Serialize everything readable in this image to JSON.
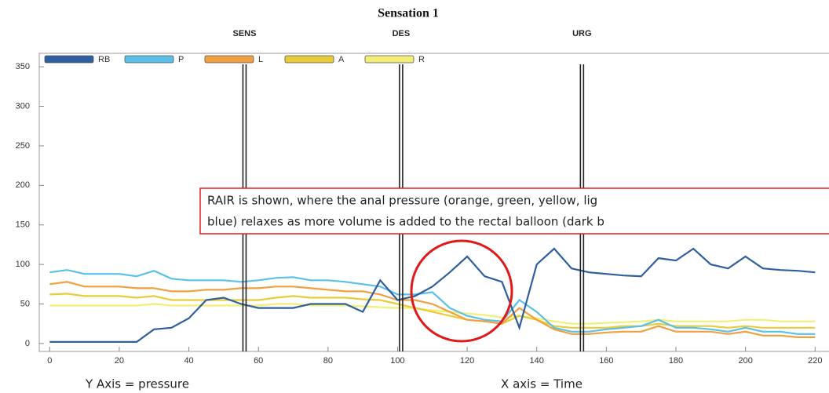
{
  "chart_data": {
    "type": "line",
    "title": "Sensation 1",
    "x": [
      0,
      5,
      10,
      15,
      20,
      25,
      30,
      35,
      40,
      45,
      50,
      55,
      60,
      65,
      70,
      75,
      80,
      85,
      90,
      95,
      100,
      105,
      110,
      115,
      120,
      125,
      130,
      135,
      140,
      145,
      150,
      155,
      160,
      165,
      170,
      175,
      180,
      185,
      190,
      195,
      200,
      205,
      210,
      215,
      220
    ],
    "series": [
      {
        "name": "RB",
        "color": "#2f5f9e",
        "values": [
          2,
          2,
          2,
          2,
          2,
          2,
          18,
          20,
          32,
          55,
          58,
          50,
          45,
          45,
          45,
          50,
          50,
          50,
          40,
          80,
          55,
          60,
          72,
          90,
          110,
          85,
          78,
          20,
          100,
          120,
          95,
          90,
          88,
          86,
          85,
          108,
          105,
          120,
          100,
          95,
          110,
          95,
          93,
          92,
          90
        ]
      },
      {
        "name": "P",
        "color": "#5bc0e8",
        "values": [
          90,
          93,
          88,
          88,
          88,
          85,
          92,
          82,
          80,
          80,
          80,
          78,
          80,
          83,
          84,
          80,
          80,
          78,
          75,
          72,
          62,
          62,
          65,
          45,
          35,
          30,
          28,
          55,
          40,
          20,
          15,
          15,
          18,
          20,
          22,
          30,
          20,
          20,
          18,
          15,
          20,
          15,
          15,
          12,
          12
        ]
      },
      {
        "name": "L",
        "color": "#f0a040",
        "values": [
          75,
          78,
          72,
          72,
          72,
          70,
          70,
          66,
          66,
          68,
          68,
          70,
          70,
          72,
          72,
          70,
          68,
          66,
          66,
          62,
          55,
          55,
          50,
          40,
          30,
          28,
          25,
          45,
          30,
          18,
          12,
          12,
          14,
          15,
          15,
          22,
          15,
          15,
          15,
          12,
          15,
          10,
          10,
          8,
          8
        ]
      },
      {
        "name": "A",
        "color": "#e8cc3a",
        "values": [
          62,
          63,
          60,
          60,
          60,
          58,
          60,
          55,
          55,
          55,
          55,
          55,
          55,
          58,
          60,
          58,
          58,
          58,
          56,
          55,
          50,
          45,
          40,
          35,
          30,
          28,
          25,
          35,
          30,
          22,
          20,
          20,
          20,
          22,
          22,
          25,
          22,
          22,
          22,
          20,
          22,
          20,
          20,
          20,
          20
        ]
      },
      {
        "name": "R",
        "color": "#f3ee78",
        "values": [
          48,
          48,
          48,
          48,
          48,
          48,
          50,
          48,
          48,
          48,
          48,
          48,
          48,
          50,
          50,
          48,
          48,
          48,
          47,
          46,
          45,
          45,
          42,
          40,
          38,
          36,
          33,
          35,
          32,
          28,
          25,
          25,
          26,
          27,
          28,
          30,
          28,
          28,
          28,
          28,
          30,
          30,
          28,
          28,
          28
        ]
      }
    ],
    "markers": [
      {
        "label": "SENS",
        "x": 56
      },
      {
        "label": "DES",
        "x": 101
      },
      {
        "label": "URG",
        "x": 153
      }
    ],
    "xlim": [
      -3,
      224
    ],
    "xticks": [
      0,
      20,
      40,
      60,
      80,
      100,
      120,
      140,
      160,
      180,
      200,
      220
    ],
    "ylim": [
      -10,
      367
    ],
    "yticks": [
      0,
      50,
      100,
      150,
      200,
      250,
      300,
      350
    ],
    "grid": false,
    "annotation": [
      "RAIR is shown, where the anal pressure (orange, green, yellow, lig",
      "blue) relaxes as more volume is added to the rectal balloon (dark b"
    ],
    "ylabel": "Y Axis = pressure",
    "xlabel": "X axis = Time"
  }
}
